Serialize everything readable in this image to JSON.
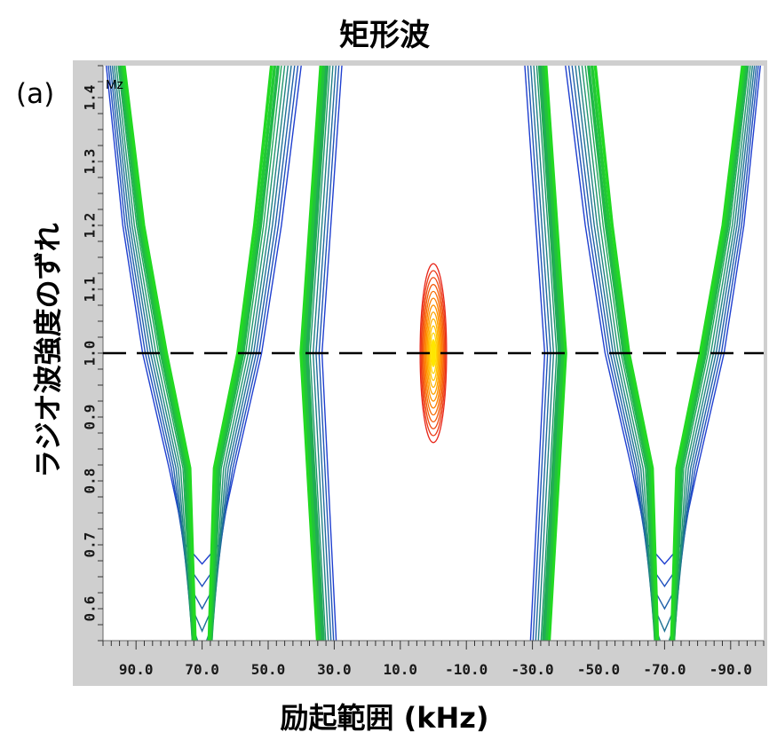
{
  "chart_data": {
    "type": "contour",
    "title": "矩形波",
    "panel_label": "(a)",
    "inner_label": "Mz",
    "xlabel": "励起範囲 (kHz)",
    "ylabel": "ラジオ波強度のずれ",
    "xlim": [
      100,
      -100
    ],
    "ylim": [
      0.55,
      1.45
    ],
    "x_ticks": [
      90,
      70,
      50,
      30,
      10,
      -10,
      -30,
      -50,
      -70,
      -90
    ],
    "x_tick_labels": [
      "90.0",
      "70.0",
      "50.0",
      "30.0",
      "10.0",
      "-10.0",
      "-30.0",
      "-50.0",
      "-70.0",
      "-90.0"
    ],
    "y_ticks": [
      0.6,
      0.7,
      0.8,
      0.9,
      1.0,
      1.1,
      1.2,
      1.3,
      1.4
    ],
    "y_tick_labels": [
      "0.6",
      "0.7",
      "0.8",
      "0.9",
      "1.0",
      "1.1",
      "1.2",
      "1.3",
      "1.4"
    ],
    "reference_line": {
      "y": 1.0,
      "style": "dashed"
    },
    "features": [
      {
        "name": "left-valley",
        "x_min": 70,
        "y_min": 0.67,
        "color": "#1f3fd0"
      },
      {
        "name": "right-valley",
        "x_min": -70,
        "y_min": 0.67,
        "color": "#1f3fd0"
      },
      {
        "name": "center-peak",
        "x": 0,
        "y": 1.0,
        "x_halfwidth": 4,
        "y_range": [
          0.86,
          1.14
        ],
        "colors": [
          "#e8281c",
          "#ff8a00",
          "#ffe600"
        ]
      }
    ],
    "colors": {
      "low_contour": "#1f3fd0",
      "mid_contour": "#22d922",
      "high_contour": "#e8281c",
      "peak": "#ffe600"
    }
  }
}
